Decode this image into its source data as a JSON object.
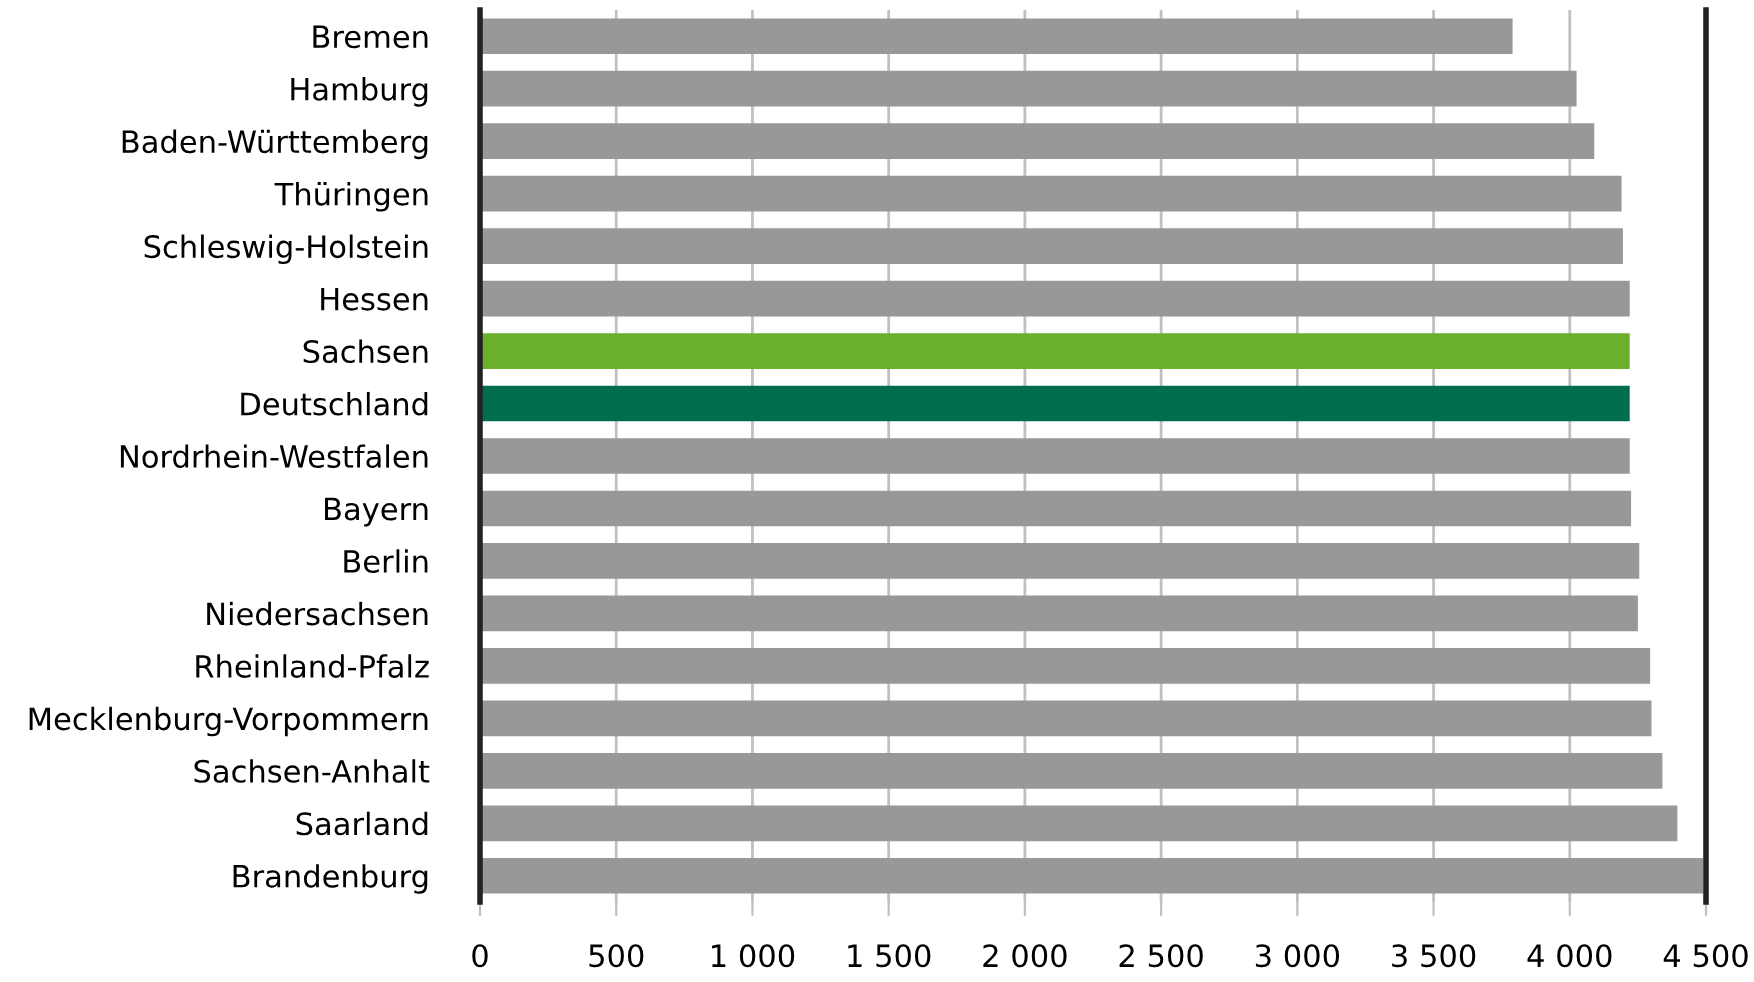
{
  "chart_data": {
    "type": "bar",
    "orientation": "horizontal",
    "categories": [
      "Bremen",
      "Hamburg",
      "Baden-Württemberg",
      "Thüringen",
      "Schleswig-Holstein",
      "Hessen",
      "Sachsen",
      "Deutschland",
      "Nordrhein-Westfalen",
      "Bayern",
      "Berlin",
      "Niedersachsen",
      "Rheinland-Pfalz",
      "Mecklenburg-Vorpommern",
      "Sachsen-Anhalt",
      "Saarland",
      "Brandenburg"
    ],
    "values": [
      3790,
      4025,
      4090,
      4190,
      4195,
      4220,
      4220,
      4220,
      4220,
      4225,
      4255,
      4250,
      4295,
      4300,
      4340,
      4395,
      4490
    ],
    "colors": [
      "#989898",
      "#989898",
      "#989898",
      "#989898",
      "#989898",
      "#989898",
      "#6ab02b",
      "#006e4e",
      "#989898",
      "#989898",
      "#989898",
      "#989898",
      "#989898",
      "#989898",
      "#989898",
      "#989898",
      "#989898"
    ],
    "xlim": [
      0,
      4500
    ],
    "xticks": [
      0,
      {
        "value": 500,
        "label": "500"
      },
      {
        "value": 1000,
        "label": "1 000"
      },
      {
        "value": 1500,
        "label": "1 500"
      },
      {
        "value": 2000,
        "label": "2 000"
      },
      {
        "value": 2500,
        "label": "2 500"
      },
      {
        "value": 3000,
        "label": "3 000"
      },
      {
        "value": 3500,
        "label": "3 500"
      },
      {
        "value": 4000,
        "label": "4 000"
      },
      {
        "value": 4500,
        "label": "4 500"
      }
    ],
    "grid": "x"
  }
}
